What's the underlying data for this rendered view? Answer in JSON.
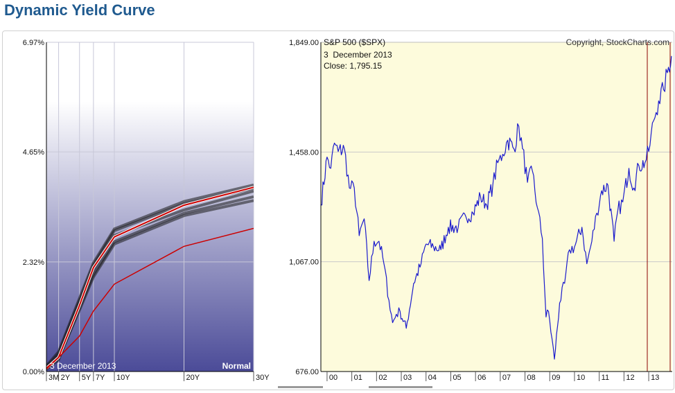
{
  "page_title": "Dynamic Yield Curve",
  "colors": {
    "title": "#1f5a8f",
    "yield_gradient_top": "#ffffff",
    "yield_gradient_bottom": "#4b4b98",
    "spx_background": "#fdfbdc",
    "spx_line": "#1a1acc",
    "current_curve": "#cc0000",
    "history_band": "#1a1a1a",
    "marker_line": "#8b0000"
  },
  "yield_chart": {
    "status_label": "Normal",
    "date_overlay": "3 December 2013",
    "y_tick_labels": [
      "6.97%",
      "4.65%",
      "2.32%",
      "0.00%"
    ],
    "x_tick_labels": [
      "3M",
      "2Y",
      "5Y",
      "7Y",
      "10Y",
      "20Y",
      "30Y"
    ]
  },
  "spx_chart": {
    "title": "S&P 500 ($SPX)",
    "copyright": "Copyright, StockCharts.com",
    "date_label": "3  December 2013",
    "close_label": "Close: 1,795.15",
    "y_tick_labels": [
      "1,849.00",
      "1,458.00",
      "1,067.00",
      "676.00"
    ],
    "x_tick_labels": [
      "00",
      "01",
      "02",
      "03",
      "04",
      "05",
      "06",
      "07",
      "08",
      "09",
      "10",
      "11",
      "12",
      "13"
    ]
  },
  "chart_data": [
    {
      "type": "line",
      "title": "",
      "xlabel": "",
      "ylabel": "",
      "x": [
        "3M",
        "2Y",
        "5Y",
        "7Y",
        "10Y",
        "20Y",
        "30Y"
      ],
      "ylim": [
        0,
        6.97
      ],
      "grid": true,
      "series": [
        {
          "name": "",
          "values": [
            0.07,
            0.3,
            1.4,
            2.2,
            2.85,
            3.52,
            3.9
          ]
        },
        {
          "name": "",
          "values": [
            0.05,
            0.3,
            0.75,
            1.28,
            1.85,
            2.65,
            3.03
          ]
        },
        {
          "name": "",
          "values": [
            0.1,
            0.38,
            1.5,
            2.25,
            2.98,
            3.55,
            3.88
          ]
        },
        {
          "name": "",
          "values": [
            0.05,
            0.25,
            1.35,
            2.05,
            2.75,
            3.35,
            3.7
          ]
        },
        {
          "name": "",
          "values": [
            0.08,
            0.32,
            1.45,
            2.15,
            2.88,
            3.42,
            3.82
          ]
        },
        {
          "name": "",
          "values": [
            0.12,
            0.42,
            1.55,
            2.3,
            3.02,
            3.6,
            3.95
          ]
        },
        {
          "name": "",
          "values": [
            0.06,
            0.28,
            1.3,
            2.0,
            2.7,
            3.3,
            3.62
          ]
        }
      ]
    },
    {
      "type": "line",
      "title": "S&P 500 ($SPX)",
      "xlabel": "",
      "ylabel": "",
      "ylim": [
        676,
        1849
      ],
      "grid": true,
      "series": [
        {
          "name": "S&P 500 ($SPX)",
          "x": [
            1999.75,
            2000.0,
            2000.15,
            2000.3,
            2000.45,
            2000.7,
            2000.9,
            2001.1,
            2001.3,
            2001.5,
            2001.7,
            2001.9,
            2002.1,
            2002.3,
            2002.5,
            2002.65,
            2002.8,
            2002.95,
            2003.2,
            2003.5,
            2003.8,
            2004.0,
            2004.3,
            2004.6,
            2004.9,
            2005.3,
            2005.6,
            2005.9,
            2006.2,
            2006.45,
            2006.7,
            2006.9,
            2007.1,
            2007.3,
            2007.55,
            2007.75,
            2007.9,
            2008.1,
            2008.3,
            2008.5,
            2008.7,
            2008.85,
            2008.95,
            2009.19,
            2009.4,
            2009.6,
            2009.8,
            2010.0,
            2010.3,
            2010.5,
            2010.7,
            2010.9,
            2011.1,
            2011.35,
            2011.6,
            2011.75,
            2011.95,
            2012.2,
            2012.4,
            2012.6,
            2012.85,
            2013.0,
            2013.2,
            2013.4,
            2013.6,
            2013.8,
            2013.92
          ],
          "values": [
            1270,
            1440,
            1400,
            1490,
            1460,
            1470,
            1330,
            1330,
            1160,
            1220,
            1000,
            1140,
            1140,
            1060,
            930,
            850,
            880,
            890,
            830,
            990,
            1060,
            1130,
            1120,
            1110,
            1190,
            1190,
            1230,
            1240,
            1300,
            1270,
            1340,
            1420,
            1450,
            1500,
            1470,
            1550,
            1470,
            1350,
            1390,
            1260,
            1150,
            870,
            890,
            720,
            920,
            990,
            1110,
            1120,
            1190,
            1060,
            1140,
            1240,
            1320,
            1340,
            1140,
            1250,
            1280,
            1400,
            1330,
            1410,
            1420,
            1460,
            1570,
            1640,
            1680,
            1760,
            1800
          ]
        }
      ]
    }
  ]
}
